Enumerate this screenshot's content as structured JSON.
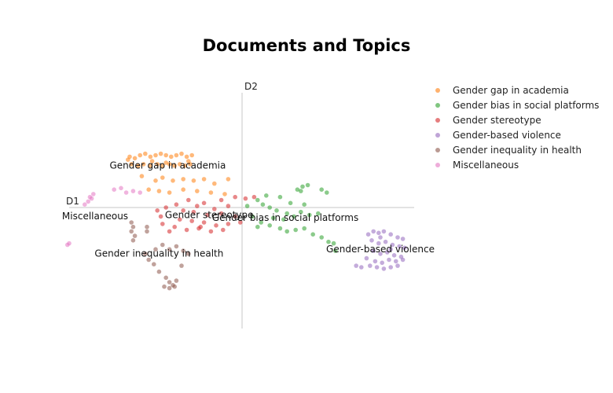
{
  "chart_data": {
    "type": "scatter",
    "title": "Documents and Topics",
    "xlabel": "D1",
    "ylabel": "D2",
    "xlim": [
      -10,
      10
    ],
    "ylim": [
      -8,
      8
    ],
    "grid": false,
    "legend_position": "top-right",
    "series": [
      {
        "name": "Gender gap in academia",
        "color": "#ff7f0e",
        "label_at": [
          -4.3,
          2.6
        ],
        "points": [
          [
            -6.5,
            3.4
          ],
          [
            -6.2,
            3.3
          ],
          [
            -5.9,
            3.5
          ],
          [
            -5.6,
            3.6
          ],
          [
            -5.3,
            3.4
          ],
          [
            -5.0,
            3.5
          ],
          [
            -4.7,
            3.6
          ],
          [
            -4.4,
            3.5
          ],
          [
            -4.1,
            3.4
          ],
          [
            -3.8,
            3.5
          ],
          [
            -3.5,
            3.6
          ],
          [
            -3.2,
            3.4
          ],
          [
            -2.9,
            3.5
          ],
          [
            -6.4,
            2.9
          ],
          [
            -6.0,
            2.8
          ],
          [
            -5.7,
            2.9
          ],
          [
            -5.3,
            2.8
          ],
          [
            -4.9,
            2.9
          ],
          [
            -4.6,
            2.8
          ],
          [
            -4.2,
            2.9
          ],
          [
            -3.9,
            2.8
          ],
          [
            -3.6,
            2.9
          ],
          [
            -3.3,
            2.8
          ],
          [
            -3.0,
            2.9
          ],
          [
            -5.8,
            2.1
          ],
          [
            -5.0,
            1.8
          ],
          [
            -4.6,
            2.0
          ],
          [
            -4.0,
            1.8
          ],
          [
            -3.4,
            1.9
          ],
          [
            -2.8,
            1.8
          ],
          [
            -2.2,
            1.9
          ],
          [
            -1.6,
            1.6
          ],
          [
            -0.8,
            1.9
          ],
          [
            -5.4,
            1.2
          ],
          [
            -4.8,
            1.1
          ],
          [
            -4.2,
            1.0
          ],
          [
            -3.4,
            1.2
          ],
          [
            -2.6,
            1.1
          ],
          [
            -1.8,
            1.0
          ],
          [
            -1.0,
            0.9
          ],
          [
            -6.6,
            3.2
          ],
          [
            -5.2,
            3.1
          ],
          [
            -4.4,
            3.0
          ],
          [
            -3.1,
            3.1
          ]
        ]
      },
      {
        "name": "Gender bias in social platforms",
        "color": "#2ca02c",
        "label_at": [
          2.5,
          -0.9
        ],
        "points": [
          [
            3.2,
            1.2
          ],
          [
            3.5,
            1.4
          ],
          [
            3.8,
            1.5
          ],
          [
            3.4,
            1.1
          ],
          [
            4.6,
            1.2
          ],
          [
            4.9,
            1.0
          ],
          [
            2.2,
            0.7
          ],
          [
            1.4,
            0.8
          ],
          [
            0.9,
            0.5
          ],
          [
            1.2,
            0.2
          ],
          [
            1.6,
            0.0
          ],
          [
            2.0,
            -0.2
          ],
          [
            2.6,
            -0.4
          ],
          [
            3.0,
            -0.6
          ],
          [
            3.4,
            -0.3
          ],
          [
            3.9,
            -0.5
          ],
          [
            4.4,
            -0.4
          ],
          [
            0.6,
            -0.6
          ],
          [
            1.1,
            -1.0
          ],
          [
            1.6,
            -1.2
          ],
          [
            2.2,
            -1.4
          ],
          [
            2.6,
            -1.6
          ],
          [
            3.1,
            -1.5
          ],
          [
            3.6,
            -1.4
          ],
          [
            4.1,
            -1.8
          ],
          [
            4.6,
            -2.0
          ],
          [
            5.0,
            -2.3
          ],
          [
            5.4,
            -2.9
          ],
          [
            5.3,
            -2.4
          ],
          [
            0.3,
            0.1
          ],
          [
            2.8,
            0.3
          ],
          [
            3.6,
            0.2
          ],
          [
            1.8,
            -0.7
          ],
          [
            2.4,
            -0.8
          ],
          [
            0.9,
            -1.3
          ]
        ]
      },
      {
        "name": "Gender stereotype",
        "color": "#d62728",
        "label_at": [
          -1.9,
          -0.7
        ],
        "points": [
          [
            -0.4,
            0.7
          ],
          [
            0.2,
            0.6
          ],
          [
            0.7,
            0.7
          ],
          [
            -1.2,
            0.5
          ],
          [
            -2.2,
            0.3
          ],
          [
            -3.1,
            0.5
          ],
          [
            -3.8,
            0.2
          ],
          [
            -4.4,
            0.0
          ],
          [
            -4.9,
            -0.2
          ],
          [
            -2.8,
            -0.3
          ],
          [
            -2.0,
            -0.5
          ],
          [
            -1.2,
            -0.4
          ],
          [
            -0.4,
            -0.6
          ],
          [
            -3.6,
            -0.8
          ],
          [
            -2.9,
            -0.9
          ],
          [
            -2.2,
            -1.0
          ],
          [
            -1.5,
            -1.2
          ],
          [
            -0.8,
            -1.1
          ],
          [
            -0.1,
            -1.0
          ],
          [
            -3.9,
            -1.3
          ],
          [
            -3.2,
            -1.5
          ],
          [
            -2.5,
            -1.4
          ],
          [
            -1.8,
            -1.6
          ],
          [
            -1.1,
            -1.5
          ],
          [
            -4.6,
            -1.1
          ],
          [
            -4.2,
            -1.6
          ],
          [
            -3.4,
            -0.2
          ],
          [
            -2.6,
            0.1
          ],
          [
            -1.6,
            -0.1
          ],
          [
            -0.8,
            0.1
          ],
          [
            -2.4,
            -1.3
          ],
          [
            -4.7,
            -0.6
          ]
        ]
      },
      {
        "name": "Gender-based violence",
        "color": "#9467bd",
        "label_at": [
          8.0,
          -3.0
        ],
        "points": [
          [
            7.3,
            -1.8
          ],
          [
            7.6,
            -1.6
          ],
          [
            7.9,
            -1.7
          ],
          [
            8.2,
            -1.6
          ],
          [
            8.6,
            -1.8
          ],
          [
            9.0,
            -2.0
          ],
          [
            9.3,
            -2.1
          ],
          [
            7.5,
            -2.2
          ],
          [
            7.9,
            -2.4
          ],
          [
            8.3,
            -2.3
          ],
          [
            8.7,
            -2.5
          ],
          [
            9.1,
            -2.6
          ],
          [
            9.4,
            -2.7
          ],
          [
            7.6,
            -2.9
          ],
          [
            8.0,
            -3.1
          ],
          [
            8.4,
            -3.0
          ],
          [
            8.8,
            -3.2
          ],
          [
            9.2,
            -3.3
          ],
          [
            7.2,
            -3.4
          ],
          [
            7.7,
            -3.6
          ],
          [
            8.1,
            -3.7
          ],
          [
            8.5,
            -3.5
          ],
          [
            8.9,
            -3.6
          ],
          [
            9.3,
            -3.5
          ],
          [
            6.6,
            -3.9
          ],
          [
            6.9,
            -4.0
          ],
          [
            7.4,
            -3.9
          ],
          [
            7.8,
            -4.0
          ],
          [
            8.2,
            -4.1
          ],
          [
            8.6,
            -4.0
          ],
          [
            9.0,
            -3.9
          ],
          [
            8.0,
            -2.0
          ],
          [
            8.6,
            -2.8
          ]
        ]
      },
      {
        "name": "Gender inequality in health",
        "color": "#8c564b",
        "label_at": [
          -4.8,
          -3.3
        ],
        "points": [
          [
            -6.4,
            -1.0
          ],
          [
            -6.3,
            -1.3
          ],
          [
            -6.4,
            -1.6
          ],
          [
            -6.2,
            -1.9
          ],
          [
            -6.3,
            -2.2
          ],
          [
            -5.5,
            -1.3
          ],
          [
            -5.0,
            -2.8
          ],
          [
            -4.6,
            -2.5
          ],
          [
            -4.2,
            -2.8
          ],
          [
            -3.8,
            -2.6
          ],
          [
            -3.4,
            -2.9
          ],
          [
            -3.1,
            -3.1
          ],
          [
            -5.6,
            -3.1
          ],
          [
            -5.4,
            -3.5
          ],
          [
            -5.1,
            -3.8
          ],
          [
            -4.8,
            -4.3
          ],
          [
            -4.4,
            -4.7
          ],
          [
            -4.2,
            -5.0
          ],
          [
            -4.0,
            -5.2
          ],
          [
            -3.8,
            -4.9
          ],
          [
            -3.5,
            -3.9
          ],
          [
            -4.5,
            -5.3
          ],
          [
            -4.2,
            -5.4
          ],
          [
            -3.9,
            -5.3
          ],
          [
            -5.5,
            -1.6
          ]
        ]
      },
      {
        "name": "Miscellaneous",
        "color": "#e377c2",
        "label_at": [
          -8.5,
          -0.8
        ],
        "points": [
          [
            -8.8,
            0.7
          ],
          [
            -8.6,
            0.9
          ],
          [
            -8.9,
            0.4
          ],
          [
            -9.1,
            0.2
          ],
          [
            -8.7,
            0.6
          ],
          [
            -7.4,
            1.2
          ],
          [
            -7.0,
            1.3
          ],
          [
            -6.7,
            1.0
          ],
          [
            -6.3,
            1.1
          ],
          [
            -5.9,
            1.0
          ],
          [
            -10.0,
            -2.4
          ],
          [
            -10.1,
            -2.5
          ]
        ]
      }
    ]
  }
}
